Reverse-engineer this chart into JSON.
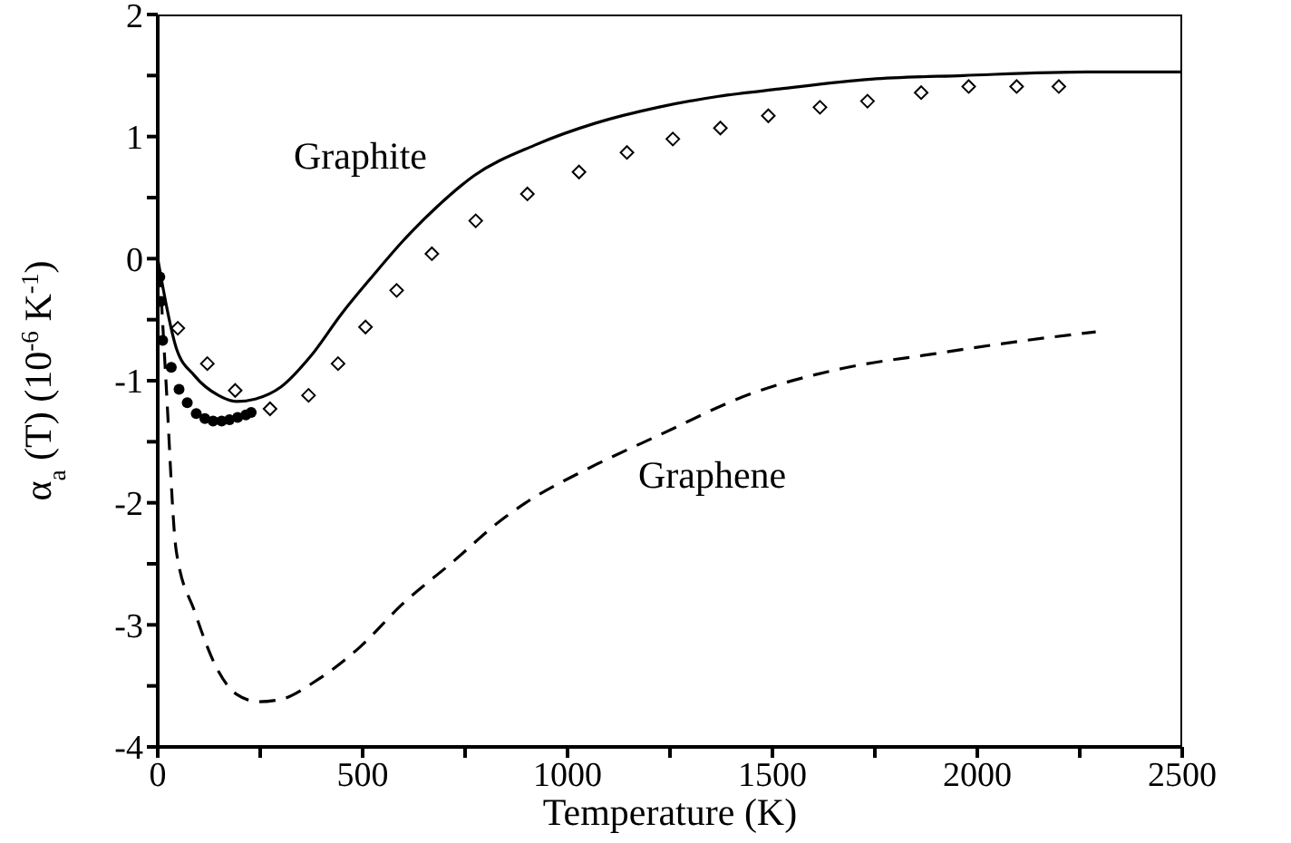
{
  "chart_data": {
    "type": "line",
    "xlabel": "Temperature (K)",
    "ylabel": "α$_{a}$ (T) (10$^{-6}$ K$^{-1}$)",
    "xlim": [
      0,
      2500
    ],
    "xticks": [
      0,
      {
        "value": 250,
        "label": null
      },
      500,
      {
        "value": 750,
        "label": null
      },
      1000,
      {
        "value": 1250,
        "label": null
      },
      1500,
      {
        "value": 1750,
        "label": null
      },
      2000,
      {
        "value": 2250,
        "label": null
      },
      2500
    ],
    "ylim": [
      -4,
      2
    ],
    "yticks": [
      -4,
      {
        "value": -3.5,
        "label": null
      },
      -3,
      {
        "value": -2.5,
        "label": null
      },
      -2,
      {
        "value": -1.5,
        "label": null
      },
      -1,
      {
        "value": -0.5,
        "label": null
      },
      0,
      {
        "value": 0.5,
        "label": null
      },
      1,
      {
        "value": 1.5,
        "label": null
      },
      2
    ],
    "grid": false,
    "annotations": [
      "Graphite",
      "Graphene"
    ],
    "series": [
      {
        "line_style": "solid",
        "marker": "none",
        "color": "#000000",
        "x": [
          0,
          45,
          90,
          148,
          193,
          238,
          301,
          373,
          449,
          525,
          597,
          680,
          772,
          920,
          1068,
          1221,
          1369,
          1517,
          1741,
          1966,
          2267,
          2500
        ],
        "values": [
          0,
          -0.73,
          -0.96,
          -1.12,
          -1.17,
          -1.15,
          -1.05,
          -0.8,
          -0.45,
          -0.14,
          0.14,
          0.42,
          0.68,
          0.93,
          1.11,
          1.24,
          1.33,
          1.39,
          1.47,
          1.5,
          1.53,
          1.53
        ]
      },
      {
        "line_style": "dashed",
        "marker": "none",
        "color": "#000000",
        "x": [
          5,
          20,
          45,
          90,
          148,
          193,
          247,
          301,
          390,
          494,
          597,
          718,
          839,
          898,
          1050,
          1221,
          1445,
          1670,
          1894,
          2118,
          2289
        ],
        "values": [
          -0.1,
          -1.0,
          -2.39,
          -2.89,
          -3.38,
          -3.57,
          -3.63,
          -3.61,
          -3.45,
          -3.18,
          -2.83,
          -2.49,
          -2.14,
          -2.0,
          -1.72,
          -1.45,
          -1.11,
          -0.9,
          -0.78,
          -0.67,
          -0.6
        ]
      },
      {
        "type": "scatter",
        "marker": "diamond",
        "color": "#000000",
        "x": [
          49,
          121,
          189,
          274,
          368,
          440,
          507,
          583,
          669,
          776,
          902,
          1028,
          1145,
          1257,
          1373,
          1490,
          1616,
          1732,
          1863,
          1979,
          2096,
          2199
        ],
        "values": [
          -0.57,
          -0.86,
          -1.08,
          -1.23,
          -1.12,
          -0.86,
          -0.56,
          -0.26,
          0.04,
          0.31,
          0.53,
          0.71,
          0.87,
          0.98,
          1.07,
          1.17,
          1.24,
          1.29,
          1.36,
          1.41,
          1.41,
          1.41
        ]
      },
      {
        "type": "scatter",
        "marker": "circle",
        "color": "#000000",
        "x": [
          5,
          8,
          12,
          33,
          52,
          72,
          94,
          115,
          135,
          156,
          175,
          195,
          215,
          228
        ],
        "values": [
          -0.15,
          -0.35,
          -0.67,
          -0.89,
          -1.07,
          -1.18,
          -1.27,
          -1.31,
          -1.33,
          -1.33,
          -1.32,
          -1.3,
          -1.28,
          -1.26
        ]
      }
    ]
  }
}
